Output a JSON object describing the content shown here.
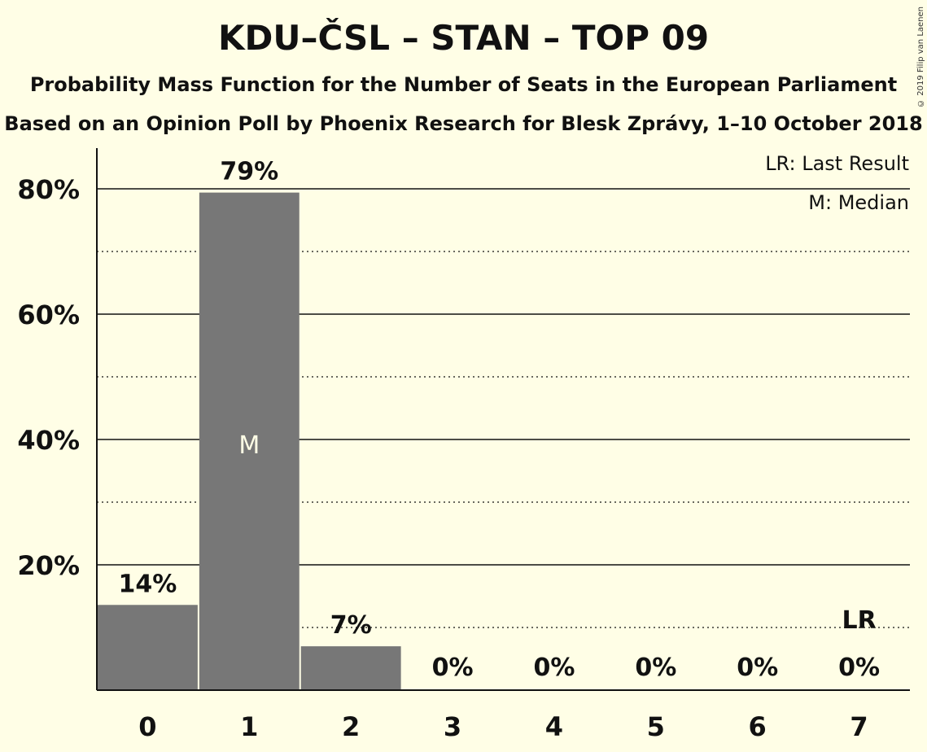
{
  "chart_data": {
    "type": "bar",
    "title": "KDU–ČSL – STAN – TOP 09",
    "subtitle": "Probability Mass Function for the Number of Seats in the European Parliament",
    "subtitle2": "Based on an Opinion Poll by Phoenix Research for Blesk Zprávy, 1–10 October 2018",
    "copyright": "© 2019 Filip van Laenen",
    "categories": [
      "0",
      "1",
      "2",
      "3",
      "4",
      "5",
      "6",
      "7"
    ],
    "values": [
      13.6,
      79.4,
      7.0,
      0,
      0,
      0,
      0,
      0
    ],
    "value_labels": [
      "14%",
      "79%",
      "7%",
      "0%",
      "0%",
      "0%",
      "0%",
      "0%"
    ],
    "y_ticks": [
      20,
      40,
      60,
      80
    ],
    "y_tick_labels": [
      "20%",
      "40%",
      "60%",
      "80%"
    ],
    "ylim": [
      0,
      86
    ],
    "median_index": 1,
    "median_label": "M",
    "last_result_index": 7,
    "last_result_label": "LR",
    "legend": [
      "LR: Last Result",
      "M: Median"
    ],
    "legend_position": "top-right",
    "bar_color": "#777777",
    "background_color": "#FFFEE6"
  }
}
